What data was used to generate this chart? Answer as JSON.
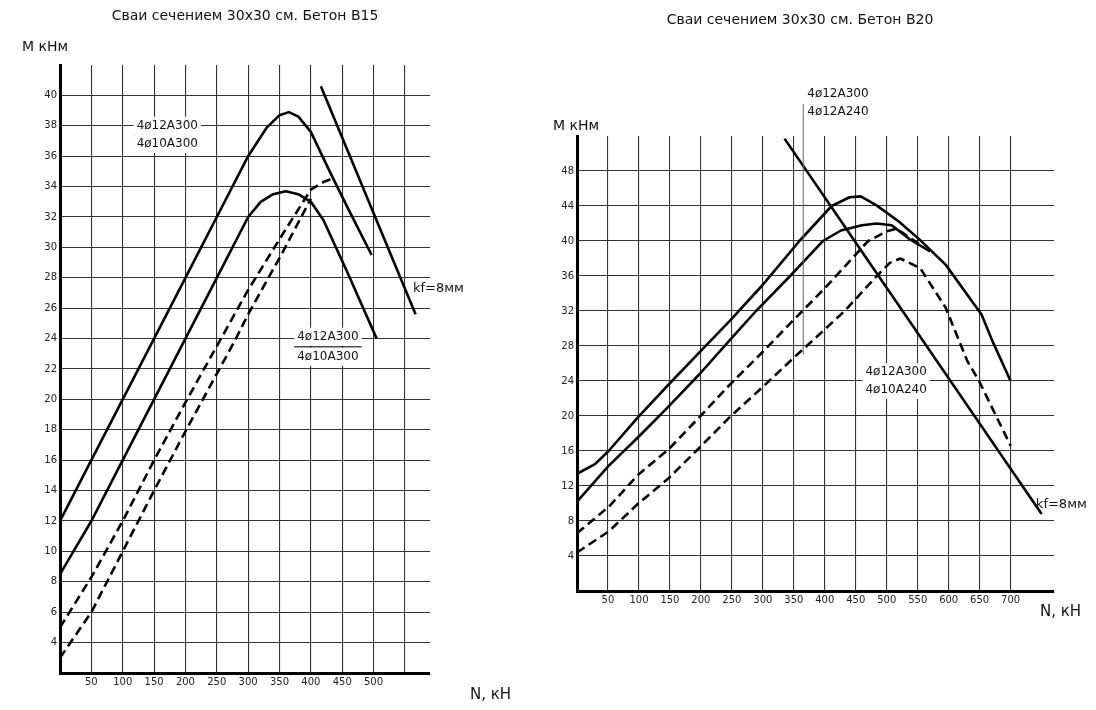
{
  "chart_data": [
    {
      "type": "line",
      "title": "Сваи сечением 30x30 см. Бетон В15",
      "xlabel": "N, кН",
      "ylabel": "M кНм",
      "xlim": [
        0,
        590
      ],
      "ylim": [
        2,
        42
      ],
      "xticks": [
        50,
        100,
        150,
        200,
        250,
        300,
        350,
        400,
        450,
        500,
        {
          "value": 550,
          "label": null
        }
      ],
      "yticks": [
        4,
        6,
        8,
        10,
        12,
        14,
        16,
        18,
        20,
        22,
        24,
        26,
        28,
        30,
        32,
        34,
        36,
        38,
        40
      ],
      "grid": true,
      "series": [
        {
          "color": "#000000",
          "line_style": "solid",
          "x": [
            0,
            50,
            100,
            150,
            200,
            250,
            300,
            330,
            350,
            365,
            380,
            400,
            430,
            460,
            497
          ],
          "values": [
            12,
            16,
            20,
            24,
            28,
            32,
            36,
            37.9,
            38.7,
            38.9,
            38.6,
            37.6,
            35.0,
            32.5,
            29.5
          ]
        },
        {
          "color": "#000000",
          "line_style": "solid",
          "x": [
            0,
            50,
            100,
            150,
            200,
            250,
            300,
            320,
            340,
            360,
            380,
            400,
            420,
            460,
            505
          ],
          "values": [
            8.5,
            12,
            16,
            20,
            24,
            28,
            32,
            33.0,
            33.5,
            33.7,
            33.5,
            33.0,
            31.8,
            28.2,
            24
          ]
        },
        {
          "color": "#000000",
          "line_style": "dashed",
          "x": [
            0,
            50,
            100,
            150,
            200,
            254,
            300,
            354,
            400,
            420,
            432
          ],
          "values": [
            5,
            8.3,
            12,
            16,
            19.8,
            23.8,
            27.2,
            30.8,
            33.8,
            34.3,
            34.5
          ]
        },
        {
          "color": "#000000",
          "line_style": "dashed",
          "x": [
            0,
            50,
            100,
            150,
            200,
            278,
            300,
            354,
            400
          ],
          "values": [
            3,
            6,
            10,
            14,
            17.9,
            23.8,
            25.6,
            29.6,
            33.2
          ]
        },
        {
          "color": "#000000",
          "line_style": "solid",
          "x": [
            416,
            567
          ],
          "values": [
            40.6,
            25.6
          ]
        }
      ],
      "annotations": [
        "4ø12A300",
        "4ø10A300",
        "4ø12A300",
        "4ø10A300",
        "kf=8мм"
      ]
    },
    {
      "type": "line",
      "title": "Сваи сечением 30x30 см. Бетон В20",
      "xlabel": "N, кН",
      "ylabel": "M кНм",
      "xlim": [
        0,
        770
      ],
      "ylim": [
        0,
        52
      ],
      "xticks": [
        50,
        100,
        150,
        200,
        250,
        300,
        350,
        400,
        450,
        500,
        550,
        600,
        650,
        700
      ],
      "yticks": [
        4,
        8,
        12,
        16,
        20,
        24,
        28,
        32,
        36,
        40,
        44,
        48
      ],
      "grid": true,
      "series": [
        {
          "color": "#000000",
          "line_style": "solid",
          "x": [
            0,
            29,
            51,
            99,
            148,
            198,
            247,
            300,
            359,
            411,
            440,
            458,
            483,
            520,
            554,
            595,
            653,
            671,
            700
          ],
          "values": [
            13.4,
            14.5,
            16,
            19.9,
            23.6,
            27.3,
            30.9,
            35,
            40,
            44,
            45,
            45.1,
            44.1,
            42.2,
            40.1,
            37.3,
            31.6,
            28.5,
            24
          ]
        },
        {
          "color": "#000000",
          "line_style": "solid",
          "x": [
            0,
            51,
            99,
            148,
            198,
            247,
            289,
            344,
            397,
            426,
            460,
            484,
            508,
            537,
            570
          ],
          "values": [
            10.2,
            14.3,
            17.6,
            21.1,
            24.8,
            28.7,
            32,
            36,
            40,
            41.2,
            41.8,
            42,
            41.8,
            40.2,
            38.8
          ]
        },
        {
          "color": "#000000",
          "line_style": "dashed",
          "x": [
            0,
            51,
            99,
            148,
            198,
            247,
            298,
            350,
            400,
            470,
            500,
            516,
            543,
            560
          ],
          "values": [
            6.6,
            9.6,
            13.3,
            16.2,
            19.9,
            23.6,
            27.2,
            31,
            34.6,
            40,
            41.1,
            41.4,
            40.1,
            39.3
          ]
        },
        {
          "color": "#000000",
          "line_style": "dashed",
          "x": [
            0,
            51,
            99,
            148,
            198,
            247,
            298,
            349,
            397,
            432,
            484,
            505,
            522,
            554,
            595,
            630,
            649,
            700
          ],
          "values": [
            4.4,
            6.8,
            10,
            12.9,
            16.4,
            19.9,
            23.2,
            26.6,
            29.7,
            32,
            36,
            37.5,
            38,
            36.9,
            32.4,
            26.3,
            24,
            16.6
          ]
        },
        {
          "color": "#000000",
          "line_style": "solid",
          "x": [
            335,
            750
          ],
          "values": [
            51.7,
            8.8
          ]
        }
      ],
      "annotations": [
        "4ø12A300",
        "4ø12A240",
        "4ø12A300",
        "4ø10A240",
        "kf=8мм"
      ]
    }
  ]
}
